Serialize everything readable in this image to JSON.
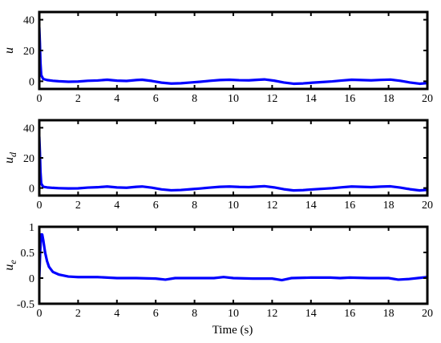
{
  "figure": {
    "xlabel": "Time (s)"
  },
  "chart_data": [
    {
      "type": "line",
      "ylabel_main": "u",
      "ylabel_sub": "",
      "xlim": [
        0,
        20
      ],
      "ylim": [
        -5,
        45
      ],
      "x_ticks": [
        0,
        2,
        4,
        6,
        8,
        10,
        12,
        14,
        16,
        18,
        20
      ],
      "y_ticks": [
        0,
        20,
        40
      ],
      "y_tick_labels": [
        "0",
        "20",
        "40"
      ],
      "series": [
        {
          "color": "#0000ff",
          "x": [
            0,
            0.03,
            0.06,
            0.1,
            0.2,
            0.4,
            0.7,
            1.0,
            1.5,
            2.0,
            2.5,
            3.0,
            3.5,
            4.0,
            4.5,
            5.0,
            5.3,
            5.8,
            6.3,
            6.8,
            7.3,
            7.8,
            8.3,
            8.8,
            9.3,
            9.8,
            10.3,
            10.8,
            11.3,
            11.6,
            12.1,
            12.6,
            13.1,
            13.6,
            14.1,
            14.6,
            15.1,
            15.6,
            16.1,
            16.6,
            17.1,
            17.6,
            18.1,
            18.6,
            19.1,
            19.6,
            20.0
          ],
          "y": [
            35,
            25,
            12,
            4,
            1.5,
            0.8,
            0.3,
            0,
            -0.3,
            -0.2,
            0.3,
            0.5,
            1.0,
            0.4,
            0.2,
            0.8,
            1.0,
            0.2,
            -0.9,
            -1.5,
            -1.3,
            -0.8,
            -0.3,
            0.3,
            0.8,
            1.0,
            0.7,
            0.6,
            1.0,
            1.2,
            0.4,
            -0.8,
            -1.6,
            -1.4,
            -0.9,
            -0.5,
            -0.1,
            0.5,
            1.0,
            0.8,
            0.6,
            0.9,
            1.1,
            0.3,
            -0.8,
            -1.6,
            -1.2
          ]
        }
      ]
    },
    {
      "type": "line",
      "ylabel_main": "u",
      "ylabel_sub": "d",
      "xlim": [
        0,
        20
      ],
      "ylim": [
        -5,
        45
      ],
      "x_ticks": [
        0,
        2,
        4,
        6,
        8,
        10,
        12,
        14,
        16,
        18,
        20
      ],
      "y_ticks": [
        0,
        20,
        40
      ],
      "y_tick_labels": [
        "0",
        "20",
        "40"
      ],
      "series": [
        {
          "color": "#0000ff",
          "x": [
            0,
            0.03,
            0.06,
            0.1,
            0.2,
            0.4,
            0.7,
            1.0,
            1.5,
            2.0,
            2.5,
            3.0,
            3.5,
            4.0,
            4.5,
            5.0,
            5.3,
            5.8,
            6.3,
            6.8,
            7.3,
            7.8,
            8.3,
            8.8,
            9.3,
            9.8,
            10.3,
            10.8,
            11.3,
            11.6,
            12.1,
            12.6,
            13.1,
            13.6,
            14.1,
            14.6,
            15.1,
            15.6,
            16.1,
            16.6,
            17.1,
            17.6,
            18.1,
            18.6,
            19.1,
            19.6,
            20.0
          ],
          "y": [
            34,
            24,
            11,
            3,
            0.8,
            0.4,
            0.1,
            -0.1,
            -0.3,
            -0.2,
            0.3,
            0.5,
            1.0,
            0.4,
            0.2,
            0.8,
            1.0,
            0.2,
            -0.9,
            -1.5,
            -1.3,
            -0.8,
            -0.3,
            0.3,
            0.8,
            1.0,
            0.7,
            0.6,
            1.0,
            1.2,
            0.4,
            -0.8,
            -1.6,
            -1.4,
            -0.9,
            -0.5,
            -0.1,
            0.5,
            1.0,
            0.8,
            0.6,
            0.9,
            1.1,
            0.3,
            -0.8,
            -1.6,
            -1.2
          ]
        }
      ]
    },
    {
      "type": "line",
      "ylabel_main": "u",
      "ylabel_sub": "e",
      "xlim": [
        0,
        20
      ],
      "ylim": [
        -0.5,
        1
      ],
      "x_ticks": [
        0,
        2,
        4,
        6,
        8,
        10,
        12,
        14,
        16,
        18,
        20
      ],
      "y_ticks": [
        -0.5,
        0,
        0.5,
        1
      ],
      "y_tick_labels": [
        "-0.5",
        "0",
        "0.5",
        "1"
      ],
      "series": [
        {
          "color": "#0000ff",
          "x": [
            0,
            0.05,
            0.1,
            0.15,
            0.2,
            0.3,
            0.4,
            0.5,
            0.7,
            1.0,
            1.5,
            2.0,
            3.0,
            4.0,
            5.0,
            6.0,
            6.5,
            7.0,
            8.0,
            9.0,
            9.5,
            10.0,
            11.0,
            12.0,
            12.5,
            13.0,
            14.0,
            15.0,
            15.5,
            16.0,
            17.0,
            18.0,
            18.5,
            19.0,
            19.5,
            20.0
          ],
          "y": [
            0,
            0.55,
            0.85,
            0.85,
            0.75,
            0.5,
            0.33,
            0.22,
            0.12,
            0.07,
            0.03,
            0.02,
            0.02,
            0.0,
            0.0,
            -0.01,
            -0.03,
            0.0,
            0.0,
            0.0,
            0.02,
            0.0,
            -0.01,
            -0.01,
            -0.04,
            0.0,
            0.01,
            0.01,
            0.0,
            0.01,
            0.0,
            0.0,
            -0.03,
            -0.02,
            0.0,
            0.02
          ]
        }
      ]
    }
  ]
}
